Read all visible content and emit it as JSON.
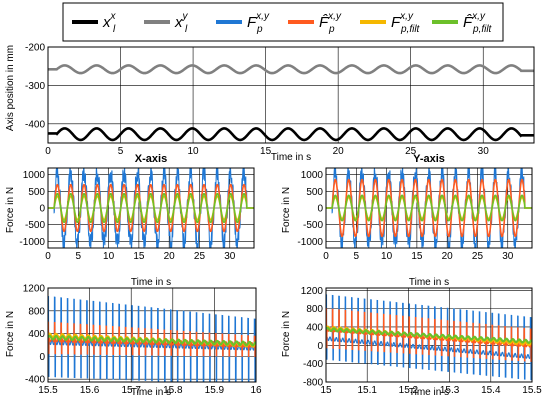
{
  "legend": {
    "items": [
      {
        "main": "x",
        "sub": "l",
        "sup": "x",
        "color": "#000000"
      },
      {
        "main": "x",
        "sub": "l",
        "sup": "y",
        "color": "#808080"
      },
      {
        "main": "F",
        "sub": "p",
        "sup": "x,y",
        "color": "#1f77d4"
      },
      {
        "main": "F̂",
        "sub": "p",
        "sup": "x,y",
        "color": "#ff5a1f"
      },
      {
        "main": "F",
        "sub": "p,filt",
        "sup": "x,y",
        "color": "#f5b800"
      },
      {
        "main": "F̂",
        "sub": "p,filt",
        "sup": "x,y",
        "color": "#6cc02a"
      }
    ]
  },
  "chart_data": [
    {
      "type": "line",
      "id": "position",
      "title": "",
      "xlabel": "Time in s",
      "ylabel": "Axis position in mm",
      "xlim": [
        0,
        33.5
      ],
      "ylim": [
        -450,
        -200
      ],
      "xticks": [
        0,
        5,
        10,
        15,
        20,
        25,
        30
      ],
      "yticks": [
        -200,
        -300,
        -400
      ],
      "grid": true,
      "series": [
        {
          "legend_index": 0,
          "color": "#000000",
          "start": 0.6,
          "end": 32.6,
          "base": -427,
          "flat_before": -425,
          "flat_after": -430,
          "amplitude": 15,
          "period": 2.2
        },
        {
          "legend_index": 1,
          "color": "#808080",
          "start": 0.6,
          "end": 32.6,
          "base": -258,
          "flat_before": -258,
          "flat_after": -262,
          "amplitude": 10,
          "period": 2.2
        }
      ]
    },
    {
      "type": "line",
      "id": "x-axis",
      "title": "X-axis",
      "xlabel": "Time in s",
      "ylabel": "Force in N",
      "xlim": [
        0,
        34
      ],
      "ylim": [
        -1200,
        1200
      ],
      "xticks": [
        0,
        5,
        10,
        15,
        20,
        25,
        30
      ],
      "yticks": [
        1000,
        500,
        0,
        -500,
        -1000
      ],
      "grid": true,
      "active": [
        1,
        32.8
      ],
      "period": 2.2,
      "series": [
        {
          "legend_index": 2,
          "color": "#1f77d4",
          "amplitude": 1050,
          "ripple": 240
        },
        {
          "legend_index": 3,
          "color": "#ff5a1f",
          "amplitude": 700,
          "ripple": 0
        },
        {
          "legend_index": 4,
          "color": "#f5b800",
          "amplitude": 350,
          "ripple": 0
        },
        {
          "legend_index": 5,
          "color": "#6cc02a",
          "amplitude": 430,
          "ripple": 0
        }
      ]
    },
    {
      "type": "line",
      "id": "y-axis",
      "title": "Y-axis",
      "xlabel": "Time in s",
      "ylabel": "Force in N",
      "xlim": [
        0,
        34
      ],
      "ylim": [
        -1200,
        1200
      ],
      "xticks": [
        0,
        5,
        10,
        15,
        20,
        25,
        30
      ],
      "yticks": [
        1000,
        500,
        0,
        -500,
        -1000
      ],
      "grid": true,
      "active": [
        1,
        32.8
      ],
      "period": 2.2,
      "series": [
        {
          "legend_index": 2,
          "color": "#1f77d4",
          "amplitude": 1050,
          "ripple": 240
        },
        {
          "legend_index": 3,
          "color": "#ff5a1f",
          "amplitude": 850,
          "ripple": 0
        },
        {
          "legend_index": 4,
          "color": "#f5b800",
          "amplitude": 320,
          "ripple": 0
        },
        {
          "legend_index": 5,
          "color": "#6cc02a",
          "amplitude": 380,
          "ripple": 0
        }
      ]
    },
    {
      "type": "line",
      "id": "x-zoom",
      "title": "",
      "xlabel": "Time in s",
      "ylabel": "Force in N",
      "xlim": [
        15.5,
        16
      ],
      "ylim": [
        -450,
        1200
      ],
      "xticks": [
        15.5,
        15.6,
        15.7,
        15.8,
        15.9,
        16
      ],
      "yticks": [
        1200,
        800,
        400,
        0,
        -400
      ],
      "grid": true,
      "pulse_period": 0.0155,
      "series": [
        {
          "legend_index": 2,
          "color": "#1f77d4",
          "kind": "pulse",
          "base_start": 250,
          "base_end": 150,
          "high_start": 1050,
          "high_end": 650,
          "low_start": -350,
          "low_end": -500
        },
        {
          "legend_index": 3,
          "color": "#ff5a1f",
          "kind": "pulse",
          "base_start": 300,
          "base_end": 200,
          "high_start": 600,
          "high_end": 350,
          "low_start": 50,
          "low_end": 0
        },
        {
          "legend_index": 4,
          "color": "#f5b800",
          "kind": "smooth",
          "start": 370,
          "end": 200
        },
        {
          "legend_index": 5,
          "color": "#6cc02a",
          "kind": "smooth",
          "start": 330,
          "end": 220
        }
      ]
    },
    {
      "type": "line",
      "id": "y-zoom",
      "title": "",
      "xlabel": "Time in s",
      "ylabel": "Force in N",
      "xlim": [
        15,
        15.5
      ],
      "ylim": [
        -800,
        1250
      ],
      "xticks": [
        15,
        15.1,
        15.2,
        15.3,
        15.4,
        15.5
      ],
      "yticks": [
        1200,
        800,
        400,
        0,
        -400,
        -800
      ],
      "grid": true,
      "pulse_period": 0.0155,
      "series": [
        {
          "legend_index": 2,
          "color": "#1f77d4",
          "kind": "pulse",
          "base_start": 150,
          "base_end": -250,
          "high_start": 1100,
          "high_end": 600,
          "low_start": -300,
          "low_end": -750
        },
        {
          "legend_index": 3,
          "color": "#ff5a1f",
          "kind": "pulse",
          "base_start": 350,
          "base_end": 0,
          "high_start": 800,
          "high_end": 350,
          "low_start": -50,
          "low_end": -350
        },
        {
          "legend_index": 4,
          "color": "#f5b800",
          "kind": "smooth",
          "start": 380,
          "end": 30
        },
        {
          "legend_index": 5,
          "color": "#6cc02a",
          "kind": "smooth",
          "start": 350,
          "end": 80
        }
      ]
    }
  ]
}
